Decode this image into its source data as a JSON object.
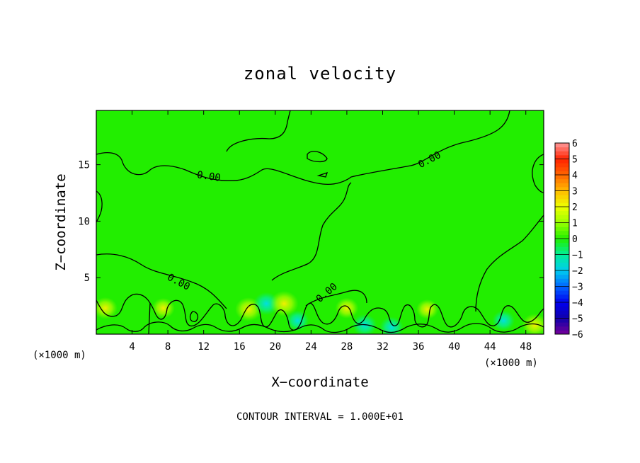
{
  "chart_data": {
    "type": "heatmap",
    "title": "zonal velocity",
    "xlabel": "X−coordinate",
    "ylabel": "Z−coordinate",
    "x_unit_left": "(×1000 m)",
    "x_unit_right": "(×1000 m)",
    "xlim": [
      0,
      50
    ],
    "ylim": [
      0,
      19.8
    ],
    "x_ticks": [
      "4",
      "8",
      "12",
      "16",
      "20",
      "24",
      "28",
      "32",
      "36",
      "40",
      "44",
      "48"
    ],
    "y_ticks": [
      "5",
      "10",
      "15"
    ],
    "colorbar": {
      "ticks": [
        "6",
        "5",
        "4",
        "3",
        "2",
        "1",
        "0",
        "−1",
        "−2",
        "−3",
        "−4",
        "−5",
        "−6"
      ],
      "range": [
        -6,
        6
      ]
    },
    "contour_labels": [
      "0.00",
      "0.00",
      "0.00",
      "0.00"
    ],
    "contour_level": 0,
    "background_value": 0.3,
    "near_surface_values": [
      {
        "x": 1.0,
        "z": 2.3,
        "v": 1.8
      },
      {
        "x": 7.5,
        "z": 2.3,
        "v": 1.5
      },
      {
        "x": 17.0,
        "z": 2.2,
        "v": 2.2
      },
      {
        "x": 19.0,
        "z": 2.7,
        "v": -2.0
      },
      {
        "x": 21.0,
        "z": 2.7,
        "v": 2.5
      },
      {
        "x": 22.5,
        "z": 1.2,
        "v": -1.5
      },
      {
        "x": 28.0,
        "z": 2.3,
        "v": 1.6
      },
      {
        "x": 30.0,
        "z": 0.8,
        "v": -1.8
      },
      {
        "x": 33.0,
        "z": 0.6,
        "v": -1.7
      },
      {
        "x": 37.0,
        "z": 2.2,
        "v": 1.4
      },
      {
        "x": 45.5,
        "z": 1.2,
        "v": -1.5
      },
      {
        "x": 49.0,
        "z": 0.8,
        "v": 2.0
      }
    ],
    "note": "CONTOUR INTERVAL =  1.000E+01"
  }
}
